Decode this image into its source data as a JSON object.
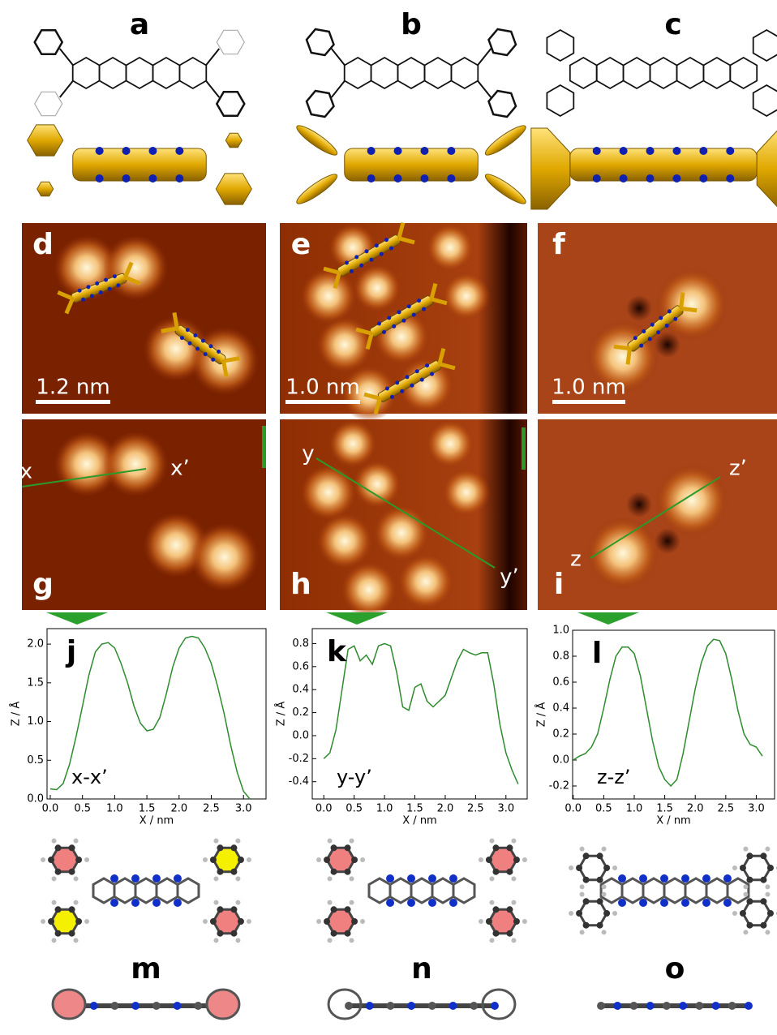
{
  "top": {
    "labels": [
      "a",
      "b",
      "c"
    ]
  },
  "stm": {
    "labels": [
      "d",
      "e",
      "f",
      "g",
      "h",
      "i"
    ],
    "scale_bars": [
      "1.2 nm",
      "1.0 nm",
      "1.0 nm"
    ],
    "line_ends": [
      [
        "x",
        "x’"
      ],
      [
        "y",
        "y’"
      ],
      [
        "z",
        "z’"
      ]
    ]
  },
  "chart_data": [
    {
      "type": "line",
      "title": "j",
      "annotation": "x-x’",
      "x_label": "X / nm",
      "y_label": "Z / Å",
      "color": "#2e8b2e",
      "xlim": [
        -0.05,
        3.35
      ],
      "ylim": [
        0,
        2.2
      ],
      "xticks": [
        {
          "value": 0,
          "label": "0.0"
        },
        0.5,
        {
          "value": 1,
          "label": "1.0"
        },
        1.5,
        {
          "value": 2,
          "label": "2.0"
        },
        2.5,
        {
          "value": 3,
          "label": "3.0"
        }
      ],
      "yticks": [
        {
          "value": 0,
          "label": "0.0"
        },
        0.5,
        {
          "value": 1,
          "label": "1.0"
        },
        1.5,
        {
          "value": 2,
          "label": "2.0"
        }
      ],
      "x": [
        0,
        0.1,
        0.2,
        0.3,
        0.4,
        0.5,
        0.6,
        0.7,
        0.8,
        0.9,
        1.0,
        1.1,
        1.2,
        1.3,
        1.4,
        1.5,
        1.6,
        1.7,
        1.8,
        1.9,
        2.0,
        2.1,
        2.2,
        2.3,
        2.4,
        2.5,
        2.6,
        2.7,
        2.8,
        2.9,
        3.0,
        3.1
      ],
      "values": [
        0.13,
        0.12,
        0.2,
        0.45,
        0.8,
        1.2,
        1.6,
        1.9,
        2.0,
        2.02,
        1.95,
        1.75,
        1.5,
        1.2,
        0.98,
        0.88,
        0.9,
        1.05,
        1.35,
        1.7,
        1.95,
        2.08,
        2.1,
        2.08,
        1.95,
        1.75,
        1.45,
        1.1,
        0.7,
        0.35,
        0.1,
        0.0
      ]
    },
    {
      "type": "line",
      "title": "k",
      "annotation": "y-y’",
      "x_label": "X / nm",
      "y_label": "Z / Å",
      "color": "#2e8b2e",
      "xlim": [
        -0.19,
        3.35
      ],
      "ylim": [
        -0.55,
        0.93
      ],
      "xticks": [
        {
          "value": 0,
          "label": "0.0"
        },
        0.5,
        {
          "value": 1,
          "label": "1.0"
        },
        1.5,
        {
          "value": 2,
          "label": "2.0"
        },
        2.5,
        {
          "value": 3,
          "label": "3.0"
        }
      ],
      "yticks": [
        -0.4,
        -0.2,
        {
          "value": 0,
          "label": "0.0"
        },
        0.2,
        0.4,
        0.6,
        0.8
      ],
      "x": [
        0,
        0.1,
        0.2,
        0.3,
        0.4,
        0.5,
        0.6,
        0.7,
        0.8,
        0.9,
        1.0,
        1.1,
        1.2,
        1.3,
        1.4,
        1.5,
        1.6,
        1.7,
        1.8,
        1.9,
        2.0,
        2.1,
        2.2,
        2.3,
        2.4,
        2.5,
        2.6,
        2.7,
        2.8,
        2.9,
        3.0,
        3.1,
        3.2
      ],
      "values": [
        -0.2,
        -0.15,
        0.05,
        0.4,
        0.75,
        0.78,
        0.65,
        0.7,
        0.62,
        0.78,
        0.8,
        0.78,
        0.55,
        0.25,
        0.22,
        0.42,
        0.45,
        0.3,
        0.25,
        0.3,
        0.35,
        0.5,
        0.65,
        0.75,
        0.72,
        0.7,
        0.72,
        0.72,
        0.45,
        0.1,
        -0.15,
        -0.3,
        -0.42
      ]
    },
    {
      "type": "line",
      "title": "l",
      "annotation": "z-z’",
      "x_label": "X / nm",
      "y_label": "Z / Å",
      "color": "#2e8b2e",
      "xlim": [
        -0.01,
        3.3
      ],
      "ylim": [
        -0.3,
        1.0
      ],
      "xticks": [
        {
          "value": 0,
          "label": "0.0"
        },
        0.5,
        {
          "value": 1,
          "label": "1.0"
        },
        1.5,
        {
          "value": 2,
          "label": "2.0"
        },
        2.5,
        {
          "value": 3,
          "label": "3.0"
        }
      ],
      "yticks": [
        -0.2,
        {
          "value": 0,
          "label": "0.0"
        },
        0.2,
        0.4,
        0.6,
        0.8,
        {
          "value": 1,
          "label": "1.0"
        }
      ],
      "x": [
        0,
        0.1,
        0.2,
        0.3,
        0.4,
        0.5,
        0.6,
        0.7,
        0.8,
        0.9,
        1.0,
        1.1,
        1.2,
        1.3,
        1.4,
        1.5,
        1.6,
        1.7,
        1.8,
        1.9,
        2.0,
        2.1,
        2.2,
        2.3,
        2.4,
        2.5,
        2.6,
        2.7,
        2.8,
        2.9,
        3.0,
        3.1
      ],
      "values": [
        0.0,
        0.03,
        0.05,
        0.1,
        0.2,
        0.4,
        0.62,
        0.8,
        0.87,
        0.87,
        0.82,
        0.65,
        0.4,
        0.15,
        -0.05,
        -0.15,
        -0.2,
        -0.15,
        0.05,
        0.3,
        0.55,
        0.75,
        0.88,
        0.93,
        0.92,
        0.82,
        0.62,
        0.38,
        0.2,
        0.12,
        0.1,
        0.03
      ]
    }
  ],
  "models": {
    "labels": [
      "m",
      "n",
      "o"
    ]
  }
}
